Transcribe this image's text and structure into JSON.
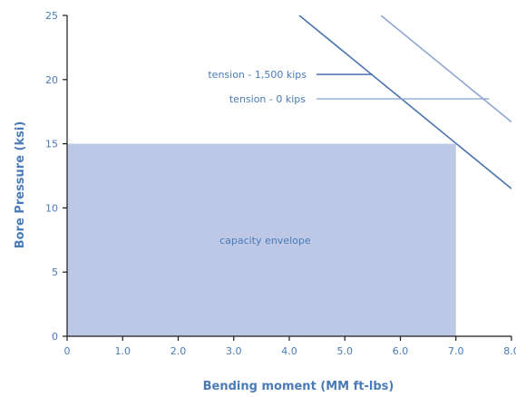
{
  "chart_data": {
    "type": "line",
    "title": "",
    "xlabel": "Bending moment (MM ft-lbs)",
    "ylabel": "Bore Pressure (ksi)",
    "xlim": [
      0,
      8
    ],
    "ylim": [
      0,
      25
    ],
    "x_ticks": [
      0,
      1,
      2,
      3,
      4,
      5,
      6,
      7,
      8
    ],
    "x_tick_labels": [
      "0",
      "1.0",
      "2.0",
      "3.0",
      "4.0",
      "5.0",
      "6.0",
      "7.0",
      "8.0"
    ],
    "y_ticks": [
      0,
      5,
      10,
      15,
      20,
      25
    ],
    "y_tick_labels": [
      "0",
      "5",
      "10",
      "15",
      "20",
      "25"
    ],
    "grid": false,
    "envelope": {
      "label": "capacity envelope",
      "x": [
        0,
        7.0
      ],
      "y": [
        0,
        15
      ],
      "color": "#bdc8e6"
    },
    "series": [
      {
        "name": "tension - 1,500 kips",
        "x": [
          4.18,
          8.0
        ],
        "y": [
          25,
          11.5
        ],
        "color": "#4a72b0",
        "label_leader_to": [
          5.5,
          20.4
        ]
      },
      {
        "name": "tension - 0 kips",
        "x": [
          5.65,
          8.0
        ],
        "y": [
          25,
          16.7
        ],
        "color": "#8fa6d2",
        "label_leader_to": [
          7.6,
          18.5
        ]
      }
    ]
  }
}
